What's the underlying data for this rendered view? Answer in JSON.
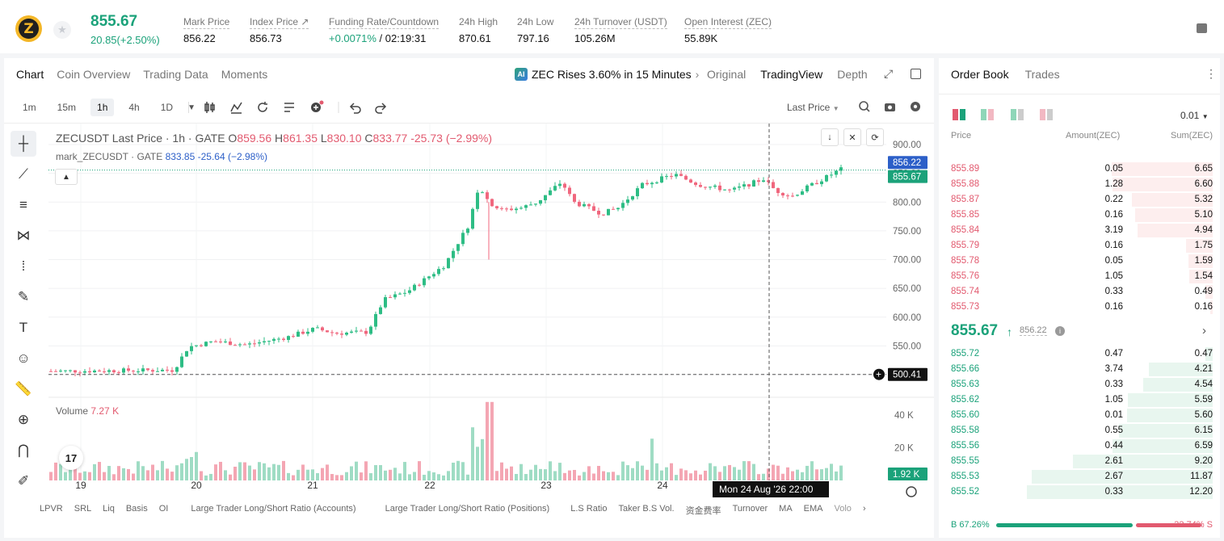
{
  "header": {
    "coin_symbol": "Z",
    "price": "855.67",
    "change": "20.85(+2.50%)",
    "stats": [
      {
        "label": "Mark Price",
        "value": "856.22"
      },
      {
        "label": "Index Price ↗",
        "value": "856.73"
      },
      {
        "label": "Funding Rate/Countdown",
        "value_green": "+0.0071%",
        "value_rest": " / 02:19:31"
      },
      {
        "label": "24h High",
        "value": "870.61"
      },
      {
        "label": "24h Low",
        "value": "797.16"
      },
      {
        "label": "24h Turnover (USDT)",
        "value": "105.26M"
      },
      {
        "label": "Open Interest (ZEC)",
        "value": "55.89K"
      }
    ]
  },
  "chart_tabs": [
    "Chart",
    "Coin Overview",
    "Trading Data",
    "Moments"
  ],
  "news": {
    "icon": "AI",
    "text": "ZEC Rises 3.60% in 15 Minutes",
    "chevron": "›"
  },
  "views": [
    "Original",
    "TradingView",
    "Depth"
  ],
  "intervals": [
    "1m",
    "15m",
    "1h",
    "4h",
    "1D"
  ],
  "interval_active": "1h",
  "last_price_select": "Last Price",
  "legend": {
    "title": "ZECUSDT Last Price · 1h · GATE",
    "o_label": "O",
    "o": "859.56",
    "h_label": "H",
    "h": "861.35",
    "l_label": "L",
    "l": "830.10",
    "c_label": "C",
    "c": "833.77",
    "chg": "-25.73 (−2.99%)"
  },
  "legend2": {
    "title": "mark_ZECUSDT · GATE",
    "value": "833.85 -25.64 (−2.98%)"
  },
  "axis": {
    "ticks": [
      "900.00",
      "850.00",
      "800.00",
      "750.00",
      "700.00",
      "650.00",
      "600.00",
      "550.00",
      "500.00"
    ],
    "mark_label": "856.22",
    "last_label": "855.67",
    "cross_label": "500.41",
    "vol_ticks": [
      "40 K",
      "20 K"
    ],
    "vol_label": "1.92 K",
    "xticks": [
      "19",
      "20",
      "21",
      "22",
      "23",
      "24"
    ],
    "cross_time": "Mon 24 Aug '26   22:00"
  },
  "volume": {
    "label": "Volume",
    "value": "7.27 K"
  },
  "indicators": [
    "LPVR",
    "SRL",
    "Liq",
    "Basis",
    "OI",
    "Large Trader Long/Short Ratio (Accounts)",
    "Large Trader Long/Short Ratio (Positions)",
    "L.S Ratio",
    "Taker B.S Vol.",
    "资金费率",
    "Turnover",
    "MA",
    "EMA",
    "Volo"
  ],
  "orderbook": {
    "tabs": [
      "Order Book",
      "Trades"
    ],
    "precision": "0.01",
    "headers": [
      "Price",
      "Amount(ZEC)",
      "Sum(ZEC)"
    ],
    "asks": [
      [
        "855.89",
        "0.05",
        "6.65"
      ],
      [
        "855.88",
        "1.28",
        "6.60"
      ],
      [
        "855.87",
        "0.22",
        "5.32"
      ],
      [
        "855.85",
        "0.16",
        "5.10"
      ],
      [
        "855.84",
        "3.19",
        "4.94"
      ],
      [
        "855.79",
        "0.16",
        "1.75"
      ],
      [
        "855.78",
        "0.05",
        "1.59"
      ],
      [
        "855.76",
        "1.05",
        "1.54"
      ],
      [
        "855.74",
        "0.33",
        "0.49"
      ],
      [
        "855.73",
        "0.16",
        "0.16"
      ]
    ],
    "mid_price": "855.67",
    "mid_mark": "856.22",
    "bids": [
      [
        "855.72",
        "0.47",
        "0.47"
      ],
      [
        "855.66",
        "3.74",
        "4.21"
      ],
      [
        "855.63",
        "0.33",
        "4.54"
      ],
      [
        "855.62",
        "1.05",
        "5.59"
      ],
      [
        "855.60",
        "0.01",
        "5.60"
      ],
      [
        "855.58",
        "0.55",
        "6.15"
      ],
      [
        "855.56",
        "0.44",
        "6.59"
      ],
      [
        "855.55",
        "2.61",
        "9.20"
      ],
      [
        "855.53",
        "2.67",
        "11.87"
      ],
      [
        "855.52",
        "0.33",
        "12.20"
      ]
    ],
    "buy_ratio": "B 67.26%",
    "sell_ratio": "32.74% S",
    "buy_frac": 0.6726
  },
  "colors": {
    "green": "#1ba27a",
    "red": "#e25a6f",
    "candle_up": "#2ebd85",
    "candle_down": "#f0677e"
  },
  "chart_data": {
    "type": "candlestick",
    "symbol": "ZECUSDT",
    "interval": "1h",
    "ylim": [
      490,
      910
    ],
    "vol_ylim": [
      0,
      50000
    ],
    "last": {
      "o": 859.56,
      "h": 861.35,
      "l": 830.1,
      "c": 833.77
    },
    "volume_last": 7270
  }
}
